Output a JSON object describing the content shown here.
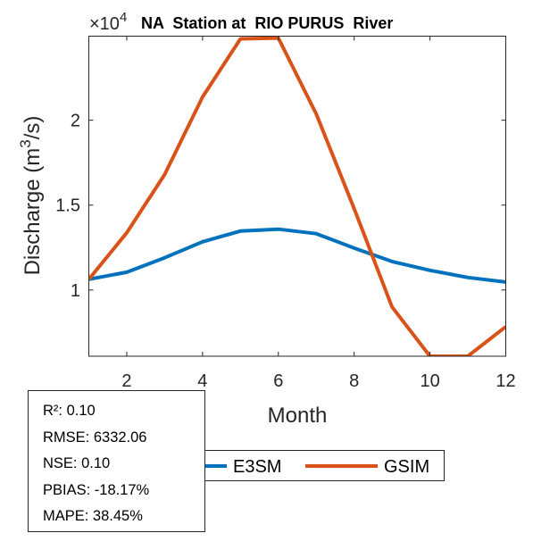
{
  "chart_data": {
    "type": "line",
    "title": "NA  Station at  RIO PURUS  River",
    "xlabel": "Month",
    "ylabel": "Discharge (m³/s)",
    "ylabel_parts": {
      "base": "Discharge (m",
      "sup": "3",
      "tail": "/s)"
    },
    "y_exponent_label": {
      "base": "×10",
      "sup": "4"
    },
    "y_scale": 10000,
    "xlim": [
      1,
      12
    ],
    "ylim": [
      6100,
      24950
    ],
    "xticks": [
      2,
      4,
      6,
      8,
      10,
      12
    ],
    "xtick_labels": [
      "2",
      "4",
      "6",
      "8",
      "10",
      "12"
    ],
    "yticks": [
      10000,
      15000,
      20000
    ],
    "ytick_labels": [
      "1",
      "1.5",
      "2"
    ],
    "grid": false,
    "x": [
      1,
      2,
      3,
      4,
      5,
      6,
      7,
      8,
      9,
      10,
      11,
      12
    ],
    "series": [
      {
        "name": "E3SM",
        "color": "#0072BD",
        "values": [
          10630,
          11050,
          11900,
          12840,
          13470,
          13580,
          13320,
          12470,
          11680,
          11160,
          10740,
          10470
        ]
      },
      {
        "name": "GSIM",
        "color": "#D95319",
        "values": [
          10630,
          13370,
          16800,
          21370,
          24790,
          24840,
          20370,
          14790,
          9000,
          6100,
          6100,
          7840
        ]
      }
    ],
    "legend": {
      "placement": "bottom",
      "entries": [
        "E3SM",
        "GSIM"
      ]
    }
  },
  "stats": {
    "lines": [
      "R²: 0.10",
      "RMSE: 6332.06",
      "NSE: 0.10",
      "PBIAS: -18.17%",
      "MAPE: 38.45%"
    ]
  }
}
